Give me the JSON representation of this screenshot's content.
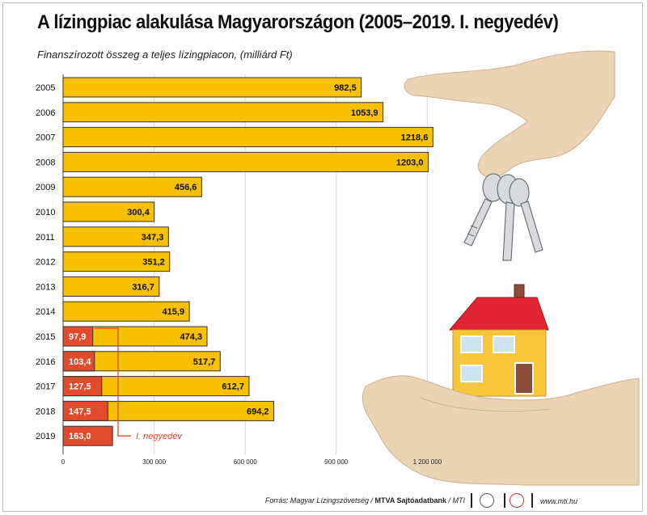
{
  "title": "A lízingpiac alakulása Magyarországon (2005–2019. I. negyedév)",
  "subtitle": "Finanszírozott összeg a teljes lízingpiacon, (milliárd Ft)",
  "chart_data": {
    "type": "bar",
    "orientation": "horizontal",
    "categories": [
      "2005",
      "2006",
      "2007",
      "2008",
      "2009",
      "2010",
      "2011",
      "2012",
      "2013",
      "2014",
      "2015",
      "2016",
      "2017",
      "2018",
      "2019"
    ],
    "series": [
      {
        "values": [
          982.5,
          1053.9,
          1218.6,
          1203.0,
          456.6,
          300.4,
          347.3,
          351.2,
          316.7,
          415.9,
          474.3,
          517.7,
          612.7,
          694.2,
          null
        ],
        "labels": [
          "982,5",
          "1053,9",
          "1218,6",
          "1203,0",
          "456,6",
          "300,4",
          "347,3",
          "351,2",
          "316,7",
          "415,9",
          "474,3",
          "517,7",
          "612,7",
          "694,2",
          ""
        ],
        "color": "#f7c000"
      },
      {
        "name": "I. negyedév",
        "values": [
          null,
          null,
          null,
          null,
          null,
          null,
          null,
          null,
          null,
          null,
          97.9,
          103.4,
          127.5,
          147.5,
          163.0
        ],
        "labels": [
          "",
          "",
          "",
          "",
          "",
          "",
          "",
          "",
          "",
          "",
          "97,9",
          "103,4",
          "127,5",
          "147,5",
          "163,0"
        ],
        "color": "#e24a2b"
      }
    ],
    "x_ticks": [
      0,
      300,
      600,
      900,
      1200
    ],
    "x_tick_labels": [
      "0",
      "300 000",
      "600 000",
      "900 000",
      "1 200 000"
    ],
    "xlim": [
      0,
      1350
    ],
    "grid": true,
    "annotation": "I. negyedév"
  },
  "footer": {
    "source_prefix": "Forrás: Magyar Lízingszövetség / ",
    "source_bold": "MTVA Sajtóadatbank",
    "source_suffix": " / MTI",
    "website": "www.mti.hu"
  }
}
